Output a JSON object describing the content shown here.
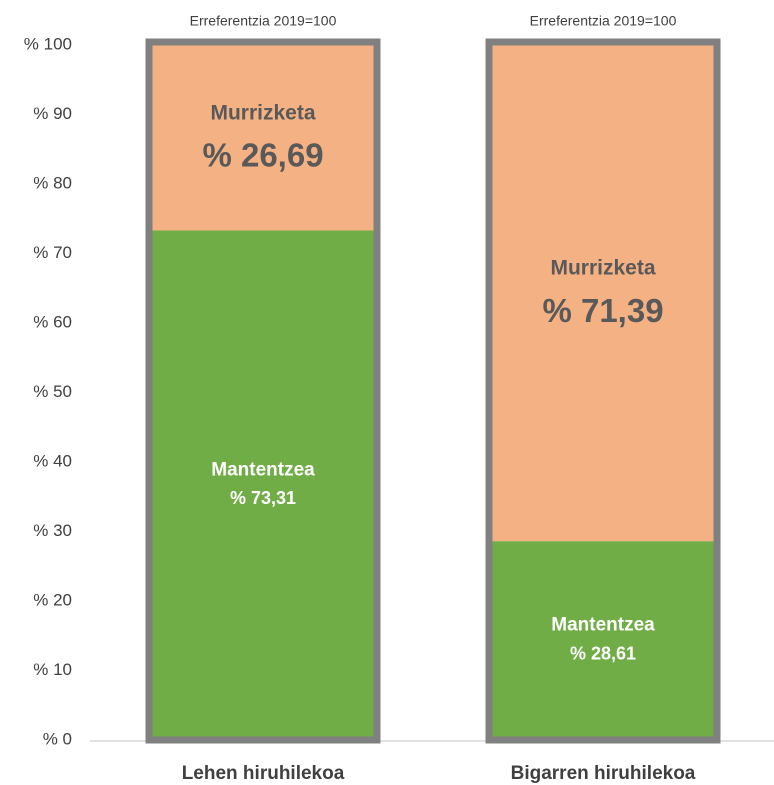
{
  "chart_data": {
    "type": "stacked_bar",
    "categories": [
      "Lehen hiruhilekoa",
      "Bigarren hiruhilekoa"
    ],
    "annotations": [
      "Erreferentzia 2019=100",
      "Erreferentzia 2019=100"
    ],
    "series": [
      {
        "name": "Mantentzea",
        "color": "#70ad47",
        "values": [
          73.31,
          28.61
        ],
        "value_labels": [
          "% 73,31",
          "% 28,61"
        ]
      },
      {
        "name": "Murrizketa",
        "color": "#f4b183",
        "values": [
          26.69,
          71.39
        ],
        "value_labels": [
          "% 26,69",
          "% 71,39"
        ]
      }
    ],
    "ylim": [
      0,
      100
    ],
    "yticks": [
      {
        "value": 0,
        "label": "% 0"
      },
      {
        "value": 10,
        "label": "% 10"
      },
      {
        "value": 20,
        "label": "% 20"
      },
      {
        "value": 30,
        "label": "% 30"
      },
      {
        "value": 40,
        "label": "% 40"
      },
      {
        "value": 50,
        "label": "% 50"
      },
      {
        "value": 60,
        "label": "% 60"
      },
      {
        "value": 70,
        "label": "% 70"
      },
      {
        "value": 80,
        "label": "% 80"
      },
      {
        "value": 90,
        "label": "% 90"
      },
      {
        "value": 100,
        "label": "% 100"
      }
    ]
  }
}
